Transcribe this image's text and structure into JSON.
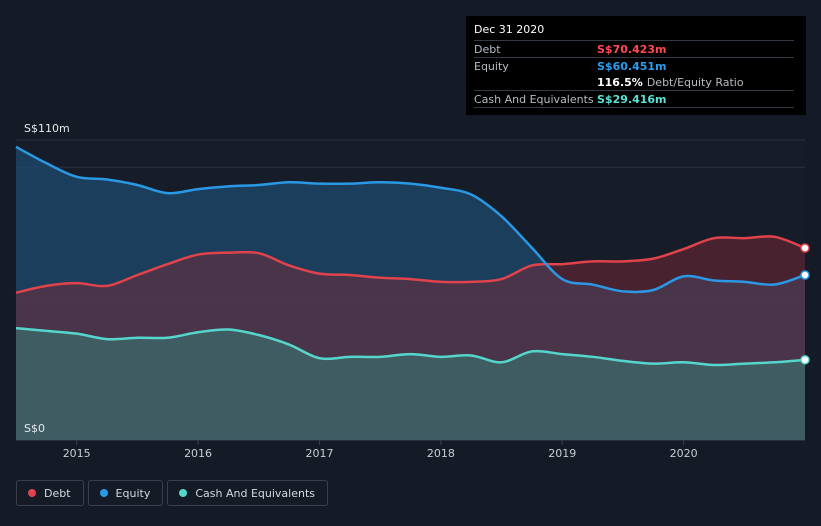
{
  "chart_data": {
    "type": "area",
    "currency_unit": "S$ millions",
    "y_tick_labels": [
      "S$110m",
      "S$0"
    ],
    "ylim": [
      0,
      110
    ],
    "x_tick_labels": [
      "2015",
      "2016",
      "2017",
      "2018",
      "2019",
      "2020"
    ],
    "xlim": [
      2014.5,
      2021.0
    ],
    "grid": true,
    "legend_position": "bottom-left",
    "series": [
      {
        "name": "Debt",
        "color": "#e0434b",
        "x": [
          2014.5,
          2014.75,
          2015.0,
          2015.25,
          2015.5,
          2015.75,
          2016.0,
          2016.25,
          2016.5,
          2016.75,
          2017.0,
          2017.25,
          2017.5,
          2017.75,
          2018.0,
          2018.25,
          2018.5,
          2018.75,
          2019.0,
          2019.25,
          2019.5,
          2019.75,
          2020.0,
          2020.25,
          2020.5,
          2020.75,
          2021.0
        ],
        "values": [
          54.0,
          56.5,
          57.5,
          56.5,
          60.5,
          64.5,
          68.0,
          68.7,
          68.5,
          64.0,
          61.0,
          60.5,
          59.5,
          59.0,
          58.0,
          58.0,
          59.0,
          64.0,
          64.5,
          65.5,
          65.5,
          66.5,
          70.0,
          74.0,
          74.0,
          74.5,
          70.4
        ]
      },
      {
        "name": "Equity",
        "color": "#2a98e4",
        "x": [
          2014.5,
          2014.75,
          2015.0,
          2015.25,
          2015.5,
          2015.75,
          2016.0,
          2016.25,
          2016.5,
          2016.75,
          2017.0,
          2017.25,
          2017.5,
          2017.75,
          2018.0,
          2018.25,
          2018.5,
          2018.75,
          2019.0,
          2019.25,
          2019.5,
          2019.75,
          2020.0,
          2020.25,
          2020.5,
          2020.75,
          2021.0
        ],
        "values": [
          107.5,
          101.5,
          96.5,
          95.5,
          93.5,
          90.5,
          92.0,
          93.0,
          93.5,
          94.5,
          94.0,
          94.0,
          94.5,
          94.0,
          92.5,
          90.0,
          82.0,
          70.5,
          59.0,
          57.0,
          54.5,
          55.0,
          60.0,
          58.5,
          58.0,
          57.0,
          60.5
        ]
      },
      {
        "name": "Cash And Equivalents",
        "color": "#55d6cc",
        "x": [
          2014.5,
          2014.75,
          2015.0,
          2015.25,
          2015.5,
          2015.75,
          2016.0,
          2016.25,
          2016.5,
          2016.75,
          2017.0,
          2017.25,
          2017.5,
          2017.75,
          2018.0,
          2018.25,
          2018.5,
          2018.75,
          2019.0,
          2019.25,
          2019.5,
          2019.75,
          2020.0,
          2020.25,
          2020.5,
          2020.75,
          2021.0
        ],
        "values": [
          41.0,
          40.0,
          39.0,
          37.0,
          37.5,
          37.5,
          39.5,
          40.5,
          38.5,
          35.0,
          30.0,
          30.5,
          30.5,
          31.5,
          30.5,
          31.0,
          28.5,
          32.5,
          31.5,
          30.5,
          29.0,
          28.0,
          28.5,
          27.5,
          28.0,
          28.5,
          29.4
        ]
      }
    ]
  },
  "tooltip": {
    "date": "Dec 31 2020",
    "rows": [
      {
        "label": "Debt",
        "value": "S$70.423m",
        "color": "#ff4a52"
      },
      {
        "label": "Equity",
        "value": "S$60.451m",
        "color": "#2a9ef0"
      },
      {
        "label": "",
        "value": "116.5%",
        "suffix": "Debt/Equity Ratio"
      },
      {
        "label": "Cash And Equivalents",
        "value": "S$29.416m",
        "color": "#5ce1d5"
      }
    ]
  },
  "legend": [
    {
      "label": "Debt",
      "color": "#e0434b"
    },
    {
      "label": "Equity",
      "color": "#2a98e4"
    },
    {
      "label": "Cash And Equivalents",
      "color": "#55d6cc"
    }
  ]
}
